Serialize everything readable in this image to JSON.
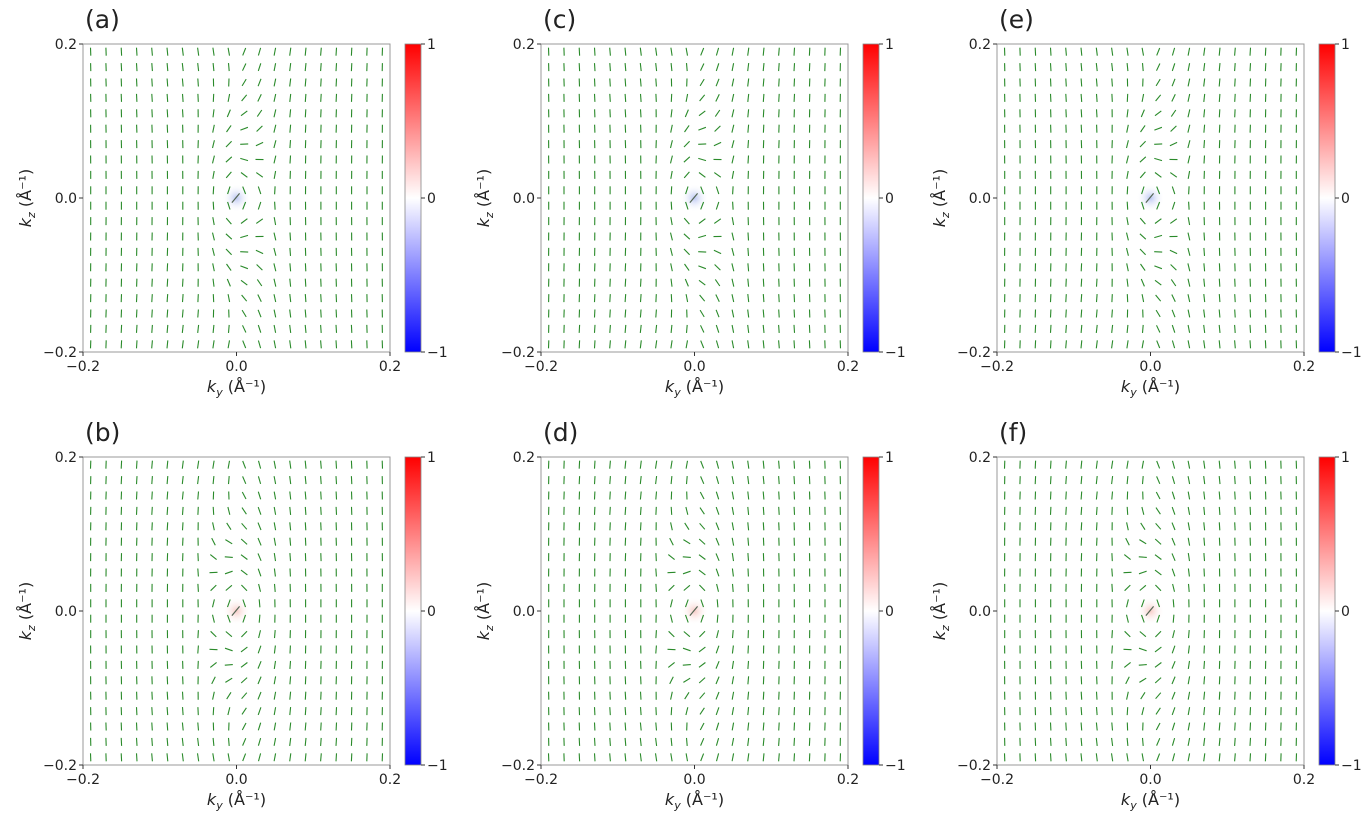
{
  "figure": {
    "colorbar": {
      "ticks": [
        "1",
        "0",
        "−1"
      ],
      "colors": {
        "top": "#ff0000",
        "middle": "#ffffff",
        "bottom": "#0000ff"
      }
    },
    "arrow_color": "#2a8a2a",
    "frame_color": "#999999"
  },
  "chart_data": [
    {
      "type": "vector-field",
      "panel": "(a)",
      "xlabel": "k_y (Å⁻¹)",
      "ylabel": "k_z (Å⁻¹)",
      "xlim": [
        -0.2,
        0.2
      ],
      "ylim": [
        -0.2,
        0.2
      ],
      "xticks": [
        "−0.2",
        "0.0",
        "0.2"
      ],
      "yticks": [
        "0.2",
        "0.0",
        "−0.2"
      ],
      "colorbar_range": [
        -1,
        1
      ],
      "vortex_sense": -1,
      "center_value": -0.15
    },
    {
      "type": "vector-field",
      "panel": "(b)",
      "xlabel": "k_y (Å⁻¹)",
      "ylabel": "k_z (Å⁻¹)",
      "xlim": [
        -0.2,
        0.2
      ],
      "ylim": [
        -0.2,
        0.2
      ],
      "xticks": [
        "−0.2",
        "0.0",
        "0.2"
      ],
      "yticks": [
        "0.2",
        "0.0",
        "−0.2"
      ],
      "colorbar_range": [
        -1,
        1
      ],
      "vortex_sense": 1,
      "center_value": 0.15
    },
    {
      "type": "vector-field",
      "panel": "(c)",
      "xlabel": "k_y (Å⁻¹)",
      "ylabel": "k_z (Å⁻¹)",
      "xlim": [
        -0.2,
        0.2
      ],
      "ylim": [
        -0.2,
        0.2
      ],
      "xticks": [
        "−0.2",
        "0.0",
        "0.2"
      ],
      "yticks": [
        "0.2",
        "0.0",
        "−0.2"
      ],
      "colorbar_range": [
        -1,
        1
      ],
      "vortex_sense": -1,
      "center_value": -0.15
    },
    {
      "type": "vector-field",
      "panel": "(d)",
      "xlabel": "k_y (Å⁻¹)",
      "ylabel": "k_z (Å⁻¹)",
      "xlim": [
        -0.2,
        0.2
      ],
      "ylim": [
        -0.2,
        0.2
      ],
      "xticks": [
        "−0.2",
        "0.0",
        "0.2"
      ],
      "yticks": [
        "0.2",
        "0.0",
        "−0.2"
      ],
      "colorbar_range": [
        -1,
        1
      ],
      "vortex_sense": 1,
      "center_value": 0.15
    },
    {
      "type": "vector-field",
      "panel": "(e)",
      "xlabel": "k_y (Å⁻¹)",
      "ylabel": "k_z (Å⁻¹)",
      "xlim": [
        -0.2,
        0.2
      ],
      "ylim": [
        -0.2,
        0.2
      ],
      "xticks": [
        "−0.2",
        "0.0",
        "0.2"
      ],
      "yticks": [
        "0.2",
        "0.0",
        "−0.2"
      ],
      "colorbar_range": [
        -1,
        1
      ],
      "vortex_sense": -1,
      "center_value": -0.15
    },
    {
      "type": "vector-field",
      "panel": "(f)",
      "xlabel": "k_y (Å⁻¹)",
      "ylabel": "k_z (Å⁻¹)",
      "xlim": [
        -0.2,
        0.2
      ],
      "ylim": [
        -0.2,
        0.2
      ],
      "xticks": [
        "−0.2",
        "0.0",
        "0.2"
      ],
      "yticks": [
        "0.2",
        "0.0",
        "−0.2"
      ],
      "colorbar_range": [
        -1,
        1
      ],
      "vortex_sense": 1,
      "center_value": 0.15
    }
  ]
}
